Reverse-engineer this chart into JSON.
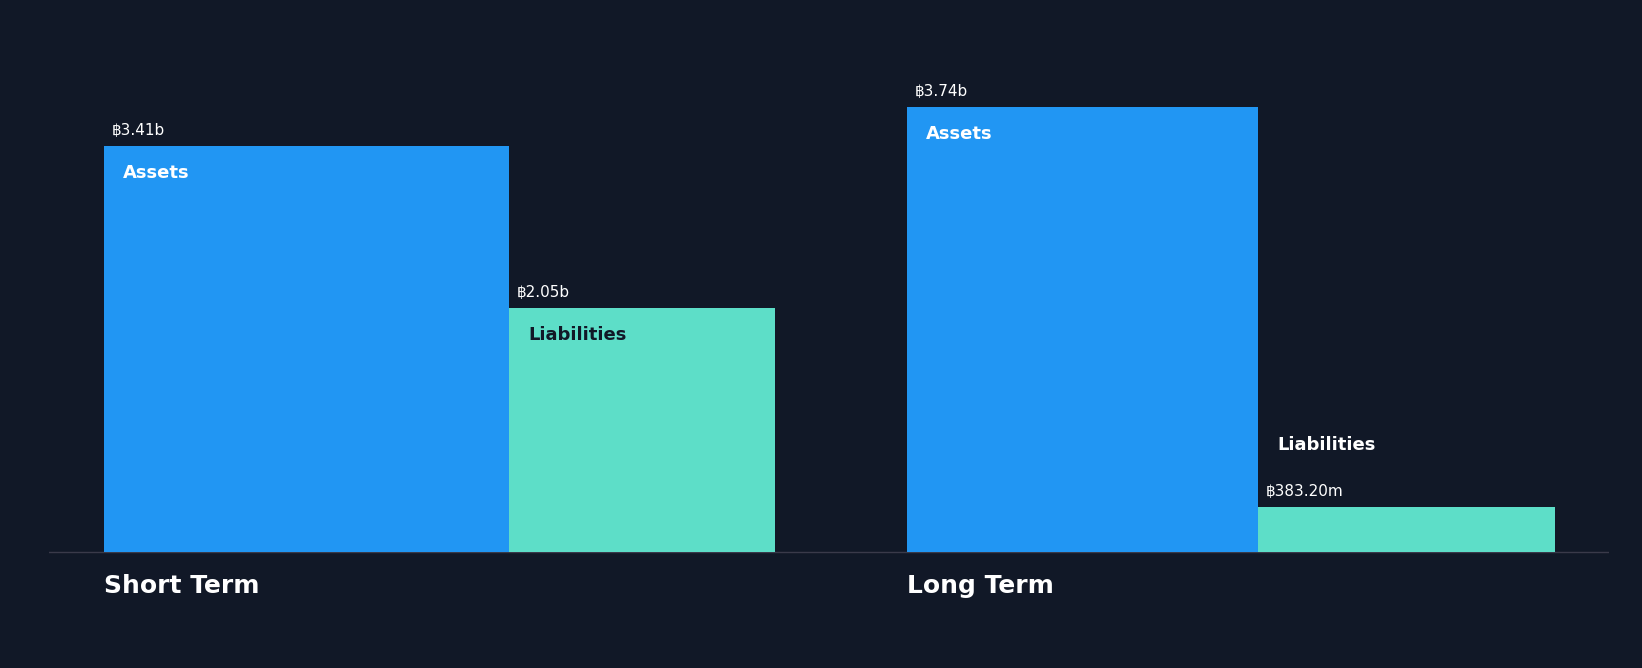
{
  "background_color": "#111827",
  "bar_color_assets": "#2196F3",
  "bar_color_liabilities": "#5DDEC8",
  "text_color_white": "#ffffff",
  "text_color_dark": "#111827",
  "groups": [
    {
      "name": "Short Term",
      "assets_value": 3.41,
      "assets_label": "฿3.41b",
      "liabilities_value": 2.05,
      "liabilities_label": "฿2.05b"
    },
    {
      "name": "Long Term",
      "assets_value": 3.74,
      "assets_label": "฿3.74b",
      "liabilities_value": 0.3832,
      "liabilities_label": "฿383.20m"
    }
  ],
  "max_value": 3.74,
  "value_fontsize": 11,
  "label_fontsize": 13,
  "group_label_fontsize": 18
}
